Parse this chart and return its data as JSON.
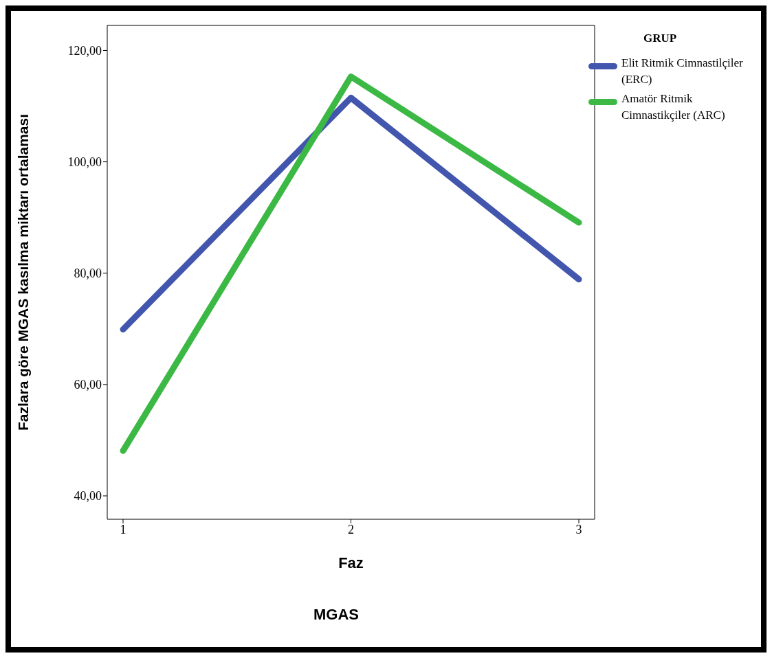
{
  "chart_data": {
    "type": "line",
    "xlabel": "Faz",
    "ylabel": "Fazlara göre MGAS kasılma miktarı ortalaması",
    "legend_title": "GRUP",
    "annotations": [
      "MGAS"
    ],
    "categories": [
      "1",
      "2",
      "3"
    ],
    "series": [
      {
        "name": "Elit Ritmik Cimnastilçiler (ERC)",
        "color": "#4356ad",
        "values": [
          69.9,
          111.5,
          78.9
        ]
      },
      {
        "name": "Amatör Ritmik Cimnastikçiler (ARC)",
        "color": "#3cb945",
        "values": [
          48.1,
          115.3,
          89.1
        ]
      }
    ],
    "ylim": [
      35.8,
      124.5
    ],
    "yticks": [
      {
        "value": 40,
        "label": "40,00"
      },
      {
        "value": 60,
        "label": "60,00"
      },
      {
        "value": 80,
        "label": "80,00"
      },
      {
        "value": 100,
        "label": "100,00"
      },
      {
        "value": 120,
        "label": "120,00"
      }
    ],
    "grid": false,
    "legend": "top right",
    "marker": "none",
    "line_style": "solid"
  }
}
